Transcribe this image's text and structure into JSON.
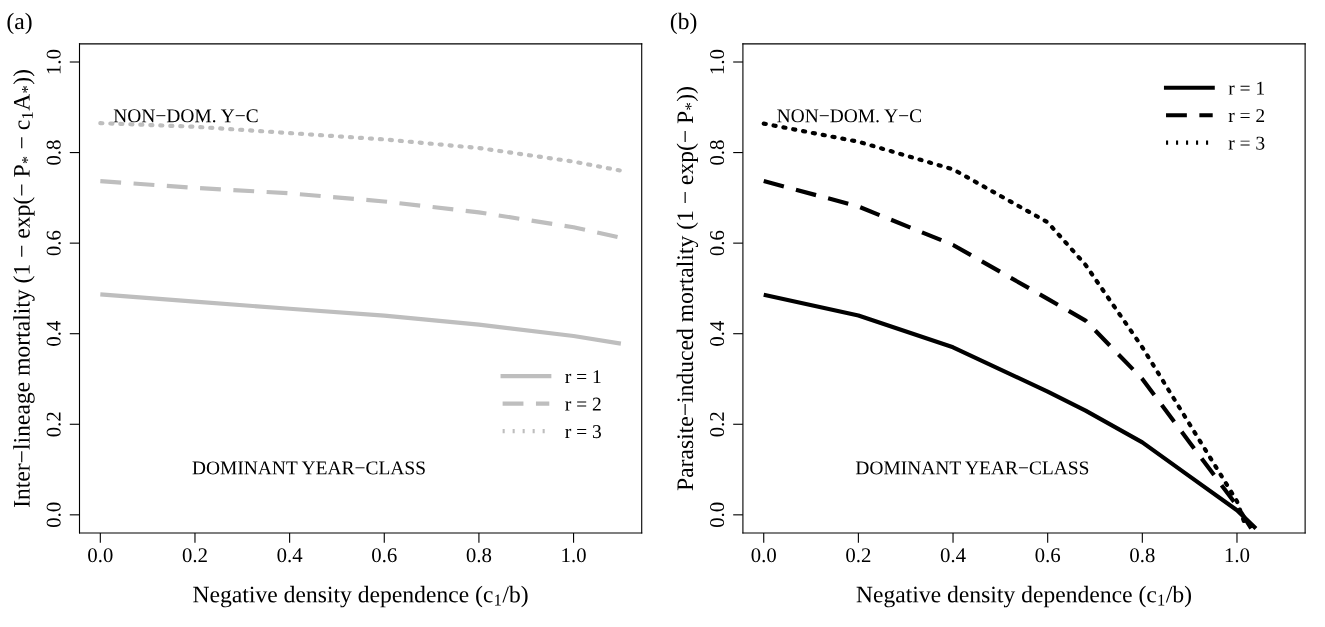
{
  "chart_data": [
    {
      "type": "line",
      "title": "(a)",
      "xlabel": "Negative density dependence (c$_{1}$/b)",
      "ylabel": "Inter−lineage mortality (1 − exp(− P$_{*}$ − c$_{1}$A$_{*}$))",
      "x": [
        0,
        0.2,
        0.4,
        0.6,
        0.8,
        1.0,
        1.1
      ],
      "series": [
        {
          "name": "r = 1",
          "color": "#bebebe",
          "line_style": "solid",
          "values": [
            0.487,
            0.471,
            0.455,
            0.44,
            0.42,
            0.395,
            0.378
          ]
        },
        {
          "name": "r = 2",
          "color": "#bebebe",
          "line_style": "dashed",
          "values": [
            0.737,
            0.722,
            0.71,
            0.692,
            0.668,
            0.635,
            0.612
          ]
        },
        {
          "name": "r = 3",
          "color": "#bebebe",
          "line_style": "dotted",
          "values": [
            0.865,
            0.857,
            0.843,
            0.829,
            0.81,
            0.78,
            0.76
          ]
        }
      ],
      "xlim": [
        -0.044,
        1.144
      ],
      "ylim": [
        -0.04,
        1.04
      ],
      "xticks": [
        {
          "value": 0,
          "label": "0.0"
        },
        {
          "value": 0.2,
          "label": "0.2"
        },
        {
          "value": 0.4,
          "label": "0.4"
        },
        {
          "value": 0.6,
          "label": "0.6"
        },
        {
          "value": 0.8,
          "label": "0.8"
        },
        {
          "value": 1.0,
          "label": "1.0"
        }
      ],
      "yticks": [
        {
          "value": 0,
          "label": "0.0"
        },
        {
          "value": 0.2,
          "label": "0.2"
        },
        {
          "value": 0.4,
          "label": "0.4"
        },
        {
          "value": 0.6,
          "label": "0.6"
        },
        {
          "value": 0.8,
          "label": "0.8"
        },
        {
          "value": 1.0,
          "label": "1.0"
        }
      ],
      "legend": "bottom right",
      "grid": false,
      "annotations": [
        "NON−DOM. Y−C",
        "DOMINANT YEAR−CLASS"
      ]
    },
    {
      "type": "line",
      "title": "(b)",
      "xlabel": "Negative density dependence (c$_{1}$/b)",
      "ylabel": "Parasite−induced mortality (1 − exp(− P$_{*}$))",
      "x": [
        0,
        0.2,
        0.4,
        0.6,
        0.68,
        0.8,
        0.9,
        1.0,
        1.02,
        1.03,
        1.04
      ],
      "series": [
        {
          "name": "r = 1",
          "color": "#000000",
          "line_style": "solid",
          "values": [
            0.486,
            0.44,
            0.37,
            0.272,
            0.23,
            0.16,
            0.085,
            0.01,
            null,
            null,
            -0.03
          ]
        },
        {
          "name": "r = 2",
          "color": "#000000",
          "line_style": "dashed",
          "values": [
            0.737,
            0.681,
            0.596,
            0.477,
            0.429,
            0.3,
            0.16,
            0.02,
            null,
            -0.03,
            null
          ]
        },
        {
          "name": "r = 3",
          "color": "#000000",
          "line_style": "dotted",
          "values": [
            0.864,
            0.824,
            0.763,
            0.646,
            0.552,
            0.37,
            0.2,
            0.03,
            -0.03,
            null,
            null
          ]
        }
      ],
      "xlim": [
        -0.044,
        1.144
      ],
      "ylim": [
        -0.04,
        1.04
      ],
      "xticks": [
        {
          "value": 0,
          "label": "0.0"
        },
        {
          "value": 0.2,
          "label": "0.2"
        },
        {
          "value": 0.4,
          "label": "0.4"
        },
        {
          "value": 0.6,
          "label": "0.6"
        },
        {
          "value": 0.8,
          "label": "0.8"
        },
        {
          "value": 1.0,
          "label": "1.0"
        }
      ],
      "yticks": [
        {
          "value": 0,
          "label": "0.0"
        },
        {
          "value": 0.2,
          "label": "0.2"
        },
        {
          "value": 0.4,
          "label": "0.4"
        },
        {
          "value": 0.6,
          "label": "0.6"
        },
        {
          "value": 0.8,
          "label": "0.8"
        },
        {
          "value": 1.0,
          "label": "1.0"
        }
      ],
      "legend": "top right",
      "grid": false,
      "annotations": [
        "NON−DOM. Y−C",
        "DOMINANT YEAR−CLASS"
      ]
    }
  ]
}
